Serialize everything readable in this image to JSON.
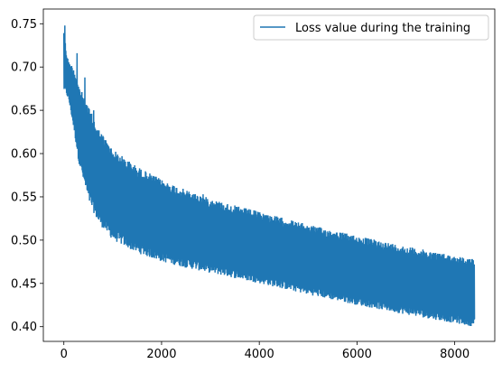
{
  "chart_data": {
    "type": "line",
    "title": "",
    "xlabel": "",
    "ylabel": "",
    "xlim": [
      -420,
      8820
    ],
    "ylim": [
      0.383,
      0.767
    ],
    "grid": false,
    "legend_placement": "top-right",
    "x_ticks": [
      0,
      2000,
      4000,
      6000,
      8000
    ],
    "y_ticks": [
      0.4,
      0.45,
      0.5,
      0.55,
      0.6,
      0.65,
      0.7,
      0.75
    ],
    "x_tick_labels": [
      "0",
      "2000",
      "4000",
      "6000",
      "8000"
    ],
    "y_tick_labels": [
      "0.40",
      "0.45",
      "0.50",
      "0.55",
      "0.60",
      "0.65",
      "0.70",
      "0.75"
    ],
    "series": [
      {
        "name": "Loss value during the training",
        "color": "#1f77b4",
        "x_range": [
          0,
          8400
        ],
        "upper_envelope": [
          [
            0,
            0.745
          ],
          [
            50,
            0.718
          ],
          [
            100,
            0.706
          ],
          [
            200,
            0.7
          ],
          [
            300,
            0.68
          ],
          [
            500,
            0.655
          ],
          [
            700,
            0.63
          ],
          [
            1000,
            0.605
          ],
          [
            1500,
            0.585
          ],
          [
            2000,
            0.57
          ],
          [
            2500,
            0.558
          ],
          [
            3000,
            0.548
          ],
          [
            3500,
            0.54
          ],
          [
            4000,
            0.533
          ],
          [
            5000,
            0.518
          ],
          [
            6000,
            0.505
          ],
          [
            7000,
            0.493
          ],
          [
            8000,
            0.482
          ],
          [
            8400,
            0.478
          ]
        ],
        "lower_envelope": [
          [
            0,
            0.672
          ],
          [
            50,
            0.668
          ],
          [
            100,
            0.66
          ],
          [
            200,
            0.628
          ],
          [
            300,
            0.59
          ],
          [
            500,
            0.545
          ],
          [
            700,
            0.52
          ],
          [
            1000,
            0.5
          ],
          [
            1500,
            0.485
          ],
          [
            2000,
            0.475
          ],
          [
            2500,
            0.468
          ],
          [
            3000,
            0.462
          ],
          [
            3500,
            0.456
          ],
          [
            4000,
            0.45
          ],
          [
            5000,
            0.437
          ],
          [
            6000,
            0.425
          ],
          [
            7000,
            0.414
          ],
          [
            8000,
            0.404
          ],
          [
            8400,
            0.4
          ]
        ],
        "spikes": [
          [
            20,
            0.748
          ],
          [
            270,
            0.716
          ],
          [
            430,
            0.688
          ],
          [
            1510,
            0.56
          ],
          [
            2850,
            0.553
          ],
          [
            2020,
            0.54
          ],
          [
            610,
            0.65
          ]
        ],
        "final_value": 0.442
      }
    ]
  }
}
